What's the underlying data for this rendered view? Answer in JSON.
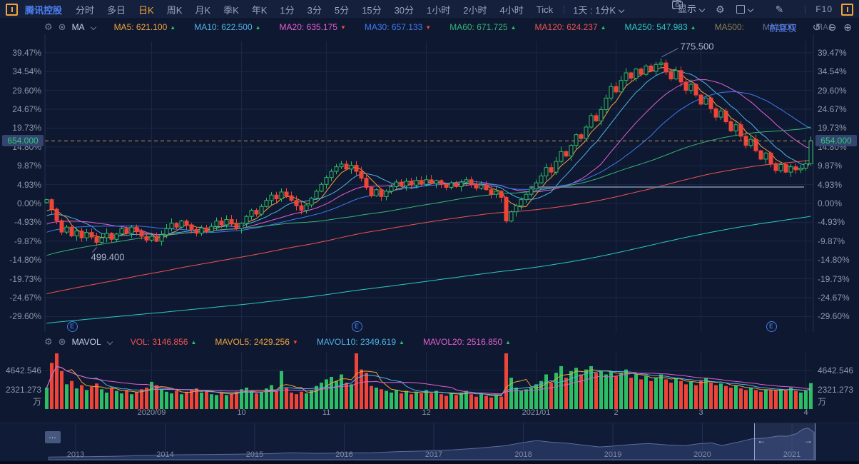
{
  "colors": {
    "up": "#2dbd64",
    "down": "#ef4539",
    "accent_orange": "#f0a43c",
    "link_blue": "#4d82f5",
    "grid": "#1b2747",
    "axis_text": "#8d97ad",
    "dashed_price_line": "#c99a52",
    "badge_bg": "#35446e",
    "badge_text": "#2fc97c",
    "drawn_line": "#75839f",
    "ma5": "#f0a43c",
    "ma10": "#4fb3e8",
    "ma20": "#e45fd0",
    "ma30": "#3d7bf0",
    "ma60": "#33b577",
    "ma120": "#ef5350",
    "ma250": "#2cc9c4",
    "ma500": "#8a7f55",
    "ma1000": "#6f6a9e",
    "ma_other": "#5a6377"
  },
  "toolbar": {
    "kline_icon": "kline-icon",
    "stock_name": "腾讯控股",
    "period_tabs": [
      "分时",
      "多日",
      "日K",
      "周K",
      "月K",
      "季K",
      "年K",
      "1分",
      "3分",
      "5分",
      "15分",
      "30分",
      "1小时",
      "2小时",
      "4小时",
      "Tick"
    ],
    "active_tab": "日K",
    "period_selector": "1天 : 1分K",
    "display_label": "显示",
    "f10_label": "F10"
  },
  "ma_panel": {
    "name": "MA",
    "items": [
      {
        "label": "MA5:",
        "value": "621.100",
        "dir": "up",
        "color": "#f0a43c"
      },
      {
        "label": "MA10:",
        "value": "622.500",
        "dir": "up",
        "color": "#4fb3e8"
      },
      {
        "label": "MA20:",
        "value": "635.175",
        "dir": "down",
        "color": "#e45fd0"
      },
      {
        "label": "MA30:",
        "value": "657.133",
        "dir": "down",
        "color": "#3d7bf0"
      },
      {
        "label": "MA60:",
        "value": "671.725",
        "dir": "up",
        "color": "#33b577"
      },
      {
        "label": "MA120:",
        "value": "624.237",
        "dir": "up",
        "color": "#ef5350"
      },
      {
        "label": "MA250:",
        "value": "547.983",
        "dir": "up",
        "color": "#2cc9c4"
      },
      {
        "label": "MA500:",
        "value": "",
        "dir": "",
        "color": "#8a7f55"
      },
      {
        "label": "MA1000:",
        "value": "",
        "dir": "",
        "color": "#6f6a9e"
      },
      {
        "label": "MA1:",
        "value": "",
        "dir": "",
        "color": "#5a6377"
      }
    ],
    "adjust_label": "前复权"
  },
  "volume_panel": {
    "name": "MAVOL",
    "items": [
      {
        "label": "VOL:",
        "value": "3146.856",
        "dir": "up",
        "color": "#ef5350"
      },
      {
        "label": "MAVOL5:",
        "value": "2429.256",
        "dir": "down",
        "color": "#f0a43c"
      },
      {
        "label": "MAVOL10:",
        "value": "2349.619",
        "dir": "up",
        "color": "#4fb3e8"
      },
      {
        "label": "MAVOL20:",
        "value": "2516.850",
        "dir": "up",
        "color": "#e45fd0"
      }
    ],
    "y_ticks": [
      "4642.546",
      "2321.273"
    ],
    "unit": "万"
  },
  "main_chart": {
    "y_ticks": [
      {
        "label": "39.47%",
        "pct": 39.47
      },
      {
        "label": "34.54%",
        "pct": 34.54
      },
      {
        "label": "29.60%",
        "pct": 29.6
      },
      {
        "label": "24.67%",
        "pct": 24.67
      },
      {
        "label": "19.73%",
        "pct": 19.73
      },
      {
        "label": "14.80%",
        "pct": 14.8
      },
      {
        "label": "9.87%",
        "pct": 9.87
      },
      {
        "label": "4.93%",
        "pct": 4.93
      },
      {
        "label": "0.00%",
        "pct": 0.0
      },
      {
        "label": "-4.93%",
        "pct": -4.93
      },
      {
        "label": "-9.87%",
        "pct": -9.87
      },
      {
        "label": "-14.80%",
        "pct": -14.8
      },
      {
        "label": "-19.73%",
        "pct": -19.73
      },
      {
        "label": "-24.67%",
        "pct": -24.67
      },
      {
        "label": "-29.60%",
        "pct": -29.6
      }
    ],
    "current_price": {
      "text": "654.000",
      "pct": 16.39
    },
    "high_annotation": {
      "text": "775.500",
      "anchor_index": 123,
      "pct": 38.0
    },
    "low_annotation": {
      "text": "499.400",
      "anchor_index": 10,
      "pct": -11.12
    },
    "x_labels": [
      {
        "text": "2020/09",
        "index": 21
      },
      {
        "text": "10",
        "index": 39
      },
      {
        "text": "11",
        "index": 56
      },
      {
        "text": "12",
        "index": 76
      },
      {
        "text": "2021/01",
        "index": 98
      },
      {
        "text": "2",
        "index": 114
      },
      {
        "text": "3",
        "index": 131
      },
      {
        "text": "4",
        "index": 152
      }
    ],
    "event_markers": {
      "glyph": "E",
      "indices": [
        5,
        62,
        145
      ]
    },
    "drawn_hline": {
      "pct": 4.3,
      "from_index": 97,
      "to_index": 152
    }
  },
  "chart_data": {
    "type": "candlestick_with_volume",
    "title": "腾讯控股 日K (前复权)",
    "base_price_0pct": 561.9,
    "note": "closes_pct are daily closes in % vs 0.00% axis base; volumes in 万(10k shares)",
    "closes_pct": [
      1.0,
      -1.5,
      -4.5,
      -7.5,
      -6.2,
      -8.5,
      -7.2,
      -9.0,
      -7.6,
      -8.8,
      -10.2,
      -9.0,
      -7.8,
      -9.4,
      -8.0,
      -6.6,
      -7.8,
      -6.2,
      -7.4,
      -8.6,
      -9.6,
      -8.6,
      -9.9,
      -8.2,
      -6.6,
      -5.2,
      -6.2,
      -4.6,
      -5.6,
      -6.8,
      -7.8,
      -6.4,
      -7.4,
      -6.0,
      -4.6,
      -5.6,
      -4.2,
      -5.4,
      -6.6,
      -5.2,
      -3.4,
      -1.8,
      -2.8,
      -0.8,
      0.8,
      2.2,
      1.2,
      3.0,
      2.0,
      0.8,
      -0.6,
      -1.8,
      -0.4,
      1.4,
      3.2,
      5.0,
      6.8,
      8.4,
      9.6,
      10.3,
      9.0,
      10.0,
      8.4,
      6.6,
      4.2,
      2.0,
      3.6,
      1.8,
      3.2,
      4.4,
      5.6,
      4.6,
      5.8,
      4.8,
      6.0,
      5.0,
      6.2,
      5.2,
      6.0,
      5.0,
      4.2,
      5.4,
      4.4,
      5.6,
      6.2,
      5.0,
      4.0,
      4.8,
      3.6,
      2.4,
      3.2,
      1.6,
      -4.6,
      -2.2,
      -0.6,
      1.0,
      2.4,
      3.8,
      5.4,
      7.2,
      9.4,
      8.2,
      11.0,
      13.6,
      12.4,
      15.2,
      18.0,
      17.0,
      20.0,
      23.0,
      21.6,
      24.6,
      27.6,
      30.6,
      29.2,
      32.2,
      34.2,
      32.8,
      35.2,
      33.8,
      36.0,
      34.6,
      36.4,
      36.8,
      34.4,
      32.6,
      34.8,
      31.8,
      29.6,
      31.2,
      28.4,
      26.0,
      27.6,
      24.8,
      22.6,
      24.2,
      21.4,
      19.0,
      20.6,
      17.6,
      15.2,
      16.8,
      13.8,
      11.6,
      13.2,
      10.4,
      8.6,
      10.2,
      8.2,
      9.6,
      8.8,
      9.2,
      10.4,
      16.4
    ],
    "volumes_wan": [
      2600,
      5600,
      7300,
      4600,
      3000,
      3400,
      2500,
      2900,
      2300,
      2700,
      3100,
      2400,
      2000,
      2600,
      2200,
      1900,
      2300,
      1800,
      2100,
      2400,
      2600,
      3300,
      2900,
      2400,
      2100,
      1900,
      2200,
      1800,
      2100,
      2300,
      2500,
      2000,
      2200,
      1800,
      1700,
      2000,
      1700,
      1900,
      2100,
      2400,
      2600,
      2200,
      1900,
      2100,
      2500,
      2900,
      2200,
      4600,
      2600,
      2000,
      1800,
      2100,
      1900,
      2300,
      2800,
      3200,
      3600,
      3900,
      3400,
      4200,
      3200,
      3000,
      7600,
      4800,
      4400,
      2800,
      2600,
      2400,
      2200,
      2000,
      2300,
      1900,
      2200,
      1800,
      2100,
      1900,
      2300,
      1900,
      2200,
      1800,
      1600,
      1900,
      1700,
      2000,
      2200,
      1800,
      1500,
      1800,
      1600,
      1400,
      1700,
      1500,
      7000,
      3800,
      2600,
      2200,
      2400,
      2600,
      3000,
      3400,
      4200,
      3200,
      4400,
      5200,
      3800,
      4600,
      5000,
      4200,
      4800,
      5200,
      4400,
      4600,
      4200,
      4600,
      4000,
      4400,
      4800,
      3800,
      4200,
      3600,
      4000,
      3400,
      3800,
      4200,
      3600,
      3200,
      3800,
      3400,
      3000,
      3300,
      2900,
      3400,
      3800,
      3200,
      2900,
      3100,
      2800,
      2600,
      2900,
      2500,
      2300,
      2600,
      2300,
      2100,
      2400,
      2300,
      2300,
      2400,
      2300,
      2600,
      2200,
      2000,
      2200,
      3147
    ],
    "ma_seed_anchors_pct": [
      [
        0,
        -39
      ],
      [
        60,
        -37
      ],
      [
        100,
        -40
      ],
      [
        150,
        -38
      ],
      [
        175,
        -30
      ],
      [
        200,
        -22
      ],
      [
        225,
        -12
      ],
      [
        249,
        -2
      ]
    ],
    "ma_windows": [
      {
        "n": 5,
        "color": "#f0a43c"
      },
      {
        "n": 10,
        "color": "#4fb3e8"
      },
      {
        "n": 20,
        "color": "#e45fd0"
      },
      {
        "n": 30,
        "color": "#3d7bf0"
      },
      {
        "n": 60,
        "color": "#33b577"
      },
      {
        "n": 120,
        "color": "#ef5350"
      },
      {
        "n": 250,
        "color": "#2cc9c4"
      }
    ],
    "mavol_windows": [
      {
        "n": 5,
        "color": "#f0a43c"
      },
      {
        "n": 10,
        "color": "#4fb3e8"
      },
      {
        "n": 20,
        "color": "#e45fd0"
      }
    ],
    "volume_axis_ticks_wan": [
      4642.546,
      2321.273
    ]
  },
  "navigator": {
    "more_button": "…",
    "years": [
      "2013",
      "2014",
      "2015",
      "2016",
      "2017",
      "2018",
      "2019",
      "2020",
      "2021"
    ],
    "series": [
      [
        2012.7,
        50
      ],
      [
        2013,
        55
      ],
      [
        2013.4,
        68
      ],
      [
        2013.8,
        88
      ],
      [
        2014.1,
        105
      ],
      [
        2014.4,
        112
      ],
      [
        2014.8,
        118
      ],
      [
        2015.2,
        135
      ],
      [
        2015.4,
        155
      ],
      [
        2015.7,
        140
      ],
      [
        2016,
        150
      ],
      [
        2016.3,
        155
      ],
      [
        2016.6,
        185
      ],
      [
        2016.9,
        200
      ],
      [
        2017.2,
        225
      ],
      [
        2017.5,
        270
      ],
      [
        2017.8,
        330
      ],
      [
        2018.0,
        410
      ],
      [
        2018.15,
        460
      ],
      [
        2018.3,
        420
      ],
      [
        2018.5,
        390
      ],
      [
        2018.65,
        350
      ],
      [
        2018.85,
        300
      ],
      [
        2019.0,
        320
      ],
      [
        2019.2,
        360
      ],
      [
        2019.4,
        385
      ],
      [
        2019.6,
        350
      ],
      [
        2019.8,
        330
      ],
      [
        2019.95,
        375
      ],
      [
        2020.1,
        400
      ],
      [
        2020.22,
        335
      ],
      [
        2020.4,
        420
      ],
      [
        2020.55,
        500
      ],
      [
        2020.7,
        520
      ],
      [
        2020.85,
        570
      ],
      [
        2020.95,
        565
      ],
      [
        2021.05,
        630
      ],
      [
        2021.12,
        740
      ],
      [
        2021.18,
        770
      ],
      [
        2021.25,
        660
      ],
      [
        2021.3,
        655
      ]
    ],
    "window": {
      "from_year": 2020.58,
      "to_year": 2021.3
    },
    "left_arrow": "←",
    "right_arrow": "→"
  }
}
